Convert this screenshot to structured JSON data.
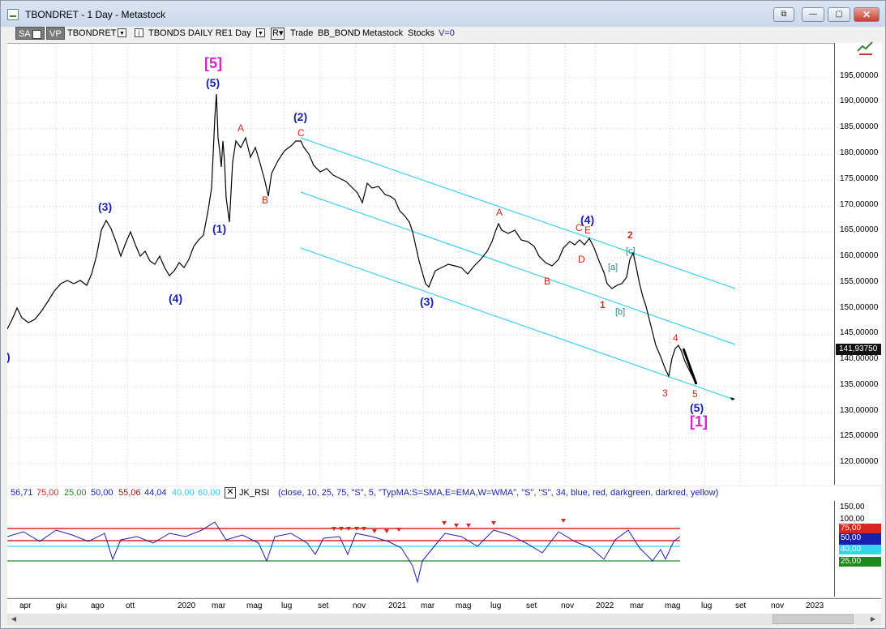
{
  "window": {
    "title": "TBONDRET - 1 Day - Metastock",
    "buttons": [
      "⧉",
      "—",
      "▢",
      "✕"
    ]
  },
  "toolbar": {
    "sa_label": "SA",
    "vp_label": "VP",
    "symbol": "TBONDRET",
    "name": "TBONDS DAILY RE",
    "period": "1 Day",
    "trade_text": "Trade",
    "bb_text": "BB_BOND",
    "source_text": "Metastock",
    "stocks_text": "Stocks",
    "volume_text": "V=0",
    "icons": [
      "dropdown-icon",
      "chart-type-icon",
      "rescale-icon",
      "compare-icon"
    ]
  },
  "price_axis": {
    "labels": [
      "195,00000",
      "190,00000",
      "185,00000",
      "180,00000",
      "175,00000",
      "170,00000",
      "165,00000",
      "160,00000",
      "155,00000",
      "150,00000",
      "145,00000",
      "140,00000",
      "135,00000",
      "130,00000",
      "125,00000",
      "120,00000"
    ],
    "last_price": "141,93750"
  },
  "wave_labels": {
    "top_magenta": "[5]",
    "bottom_magenta": "[1]",
    "blue": [
      "(5)",
      "(3)",
      "(1)",
      "(4)",
      "(2)",
      "(3)",
      "(4)",
      "(5)",
      ")"
    ],
    "red": [
      "A",
      "B",
      "C",
      "A",
      "B",
      "C",
      "D",
      "E",
      "1",
      "2",
      "3",
      "4",
      "5"
    ],
    "teal": [
      "[a]",
      "[b]",
      "[c]"
    ]
  },
  "indicator": {
    "values": [
      "56,71",
      "75,00",
      "25,00",
      "50,00",
      "55,06",
      "44,04",
      "40,00",
      "60,00"
    ],
    "name": "JK_RSI",
    "params": "(close,  10,  25,  75,  \"S\",  5,  \"TypMA:S=SMA,E=EMA,W=WMA\",  \"S\",  \"S\",  34,  blue,  red,  darkgreen,  darkred,  yellow)",
    "axis_labels": [
      "150,00",
      "100,00"
    ],
    "tags": [
      "75,00",
      "50,00",
      "40,00",
      "25,00"
    ]
  },
  "x_axis": [
    "apr",
    "giu",
    "ago",
    "ott",
    "2020",
    "mar",
    "mag",
    "lug",
    "set",
    "nov",
    "2021",
    "mar",
    "mag",
    "lug",
    "set",
    "nov",
    "2022",
    "mar",
    "mag",
    "lug",
    "set",
    "nov",
    "2023"
  ],
  "colors": {
    "channel": "#38d3ee",
    "wave_blue": "#1a1fb0",
    "wave_red": "#d8261c",
    "magenta": "#e020d0",
    "axis_red": "#b33333"
  }
}
